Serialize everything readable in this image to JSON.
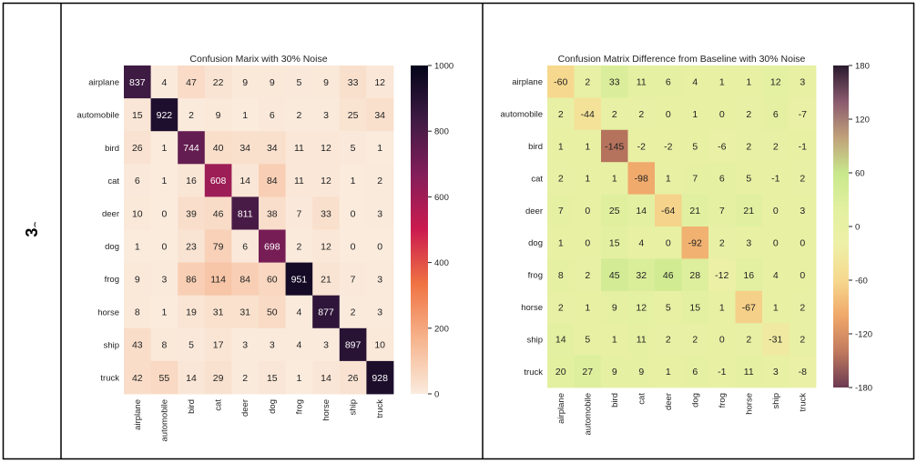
{
  "row_label": "3",
  "chart_data": [
    {
      "type": "heatmap",
      "title": "Confusion Marix with 30% Noise",
      "xlabel": "",
      "ylabel": "",
      "categories": [
        "airplane",
        "automobile",
        "bird",
        "cat",
        "deer",
        "dog",
        "frog",
        "horse",
        "ship",
        "truck"
      ],
      "values": [
        [
          837,
          4,
          47,
          22,
          9,
          9,
          5,
          9,
          33,
          12
        ],
        [
          15,
          922,
          2,
          9,
          1,
          6,
          2,
          3,
          25,
          34
        ],
        [
          26,
          1,
          744,
          40,
          34,
          34,
          11,
          12,
          5,
          1
        ],
        [
          6,
          1,
          16,
          608,
          14,
          84,
          11,
          12,
          1,
          2
        ],
        [
          10,
          0,
          39,
          46,
          811,
          38,
          7,
          33,
          0,
          3
        ],
        [
          1,
          0,
          23,
          79,
          6,
          698,
          2,
          12,
          0,
          0
        ],
        [
          9,
          3,
          86,
          114,
          84,
          60,
          951,
          21,
          7,
          3
        ],
        [
          8,
          1,
          19,
          31,
          31,
          50,
          4,
          877,
          2,
          3
        ],
        [
          43,
          8,
          5,
          17,
          3,
          3,
          4,
          3,
          897,
          10
        ],
        [
          42,
          55,
          14,
          29,
          2,
          15,
          1,
          14,
          26,
          928
        ]
      ],
      "vmin": 0,
      "vmax": 1000,
      "colorbar_ticks": [
        "0",
        "200",
        "400",
        "600",
        "800",
        "1000"
      ],
      "colormap": [
        "#faebdd",
        "#f6b48e",
        "#f07443",
        "#cb1b4f",
        "#841e5a",
        "#3f1b44",
        "#03051a"
      ]
    },
    {
      "type": "heatmap",
      "title": "Confusion Matrix Difference from Baseline with 30% Noise",
      "xlabel": "",
      "ylabel": "",
      "categories": [
        "airplane",
        "automobile",
        "bird",
        "cat",
        "deer",
        "dog",
        "frog",
        "horse",
        "ship",
        "truck"
      ],
      "values": [
        [
          -60,
          2,
          33,
          11,
          6,
          4,
          1,
          1,
          12,
          3
        ],
        [
          2,
          -44,
          2,
          2,
          0,
          1,
          0,
          2,
          6,
          -7
        ],
        [
          1,
          1,
          -145,
          -2,
          -2,
          5,
          -6,
          2,
          2,
          -1
        ],
        [
          2,
          1,
          1,
          -98,
          1,
          7,
          6,
          5,
          -1,
          2
        ],
        [
          7,
          0,
          25,
          14,
          -64,
          21,
          7,
          21,
          0,
          3
        ],
        [
          1,
          0,
          15,
          4,
          0,
          -92,
          2,
          3,
          0,
          0
        ],
        [
          8,
          2,
          45,
          32,
          46,
          28,
          -12,
          16,
          4,
          0
        ],
        [
          2,
          1,
          9,
          12,
          5,
          15,
          1,
          -67,
          1,
          2
        ],
        [
          14,
          5,
          1,
          11,
          2,
          2,
          0,
          2,
          -31,
          2
        ],
        [
          20,
          27,
          9,
          9,
          1,
          6,
          -1,
          11,
          3,
          -8
        ]
      ],
      "vmin": -180,
      "vmax": 180,
      "colorbar_ticks": [
        "-180",
        "-120",
        "-60",
        "0",
        "60",
        "120",
        "180"
      ],
      "colormap": [
        "#6b3a52",
        "#c07a5e",
        "#f0a86a",
        "#f6d88e",
        "#eef0a8",
        "#e2f0a0",
        "#c8e88c",
        "#c0a07a",
        "#8a5a6e",
        "#2a1a2e"
      ]
    }
  ]
}
